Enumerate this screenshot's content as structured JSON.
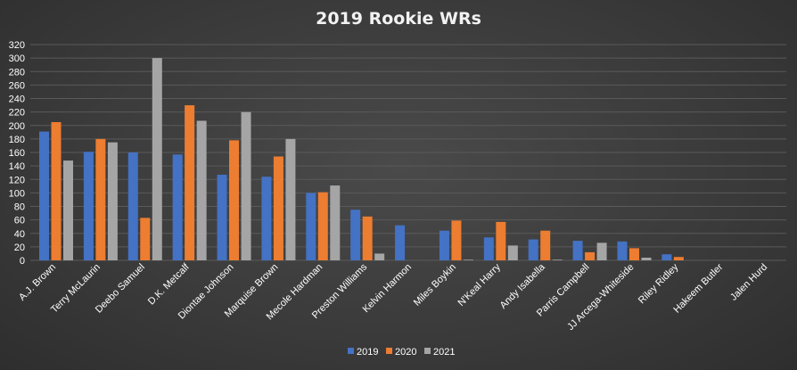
{
  "chart_data": {
    "type": "bar",
    "title": "2019 Rookie WRs",
    "xlabel": "",
    "ylabel": "",
    "ylim": [
      0,
      320
    ],
    "yticks": [
      0,
      20,
      40,
      60,
      80,
      100,
      120,
      140,
      160,
      180,
      200,
      220,
      240,
      260,
      280,
      300,
      320
    ],
    "grid": true,
    "legend_position": "bottom",
    "categories": [
      "A.J. Brown",
      "Terry McLaurin",
      "Deebo Samuel",
      "D.K. Metcalf",
      "Diontae Johnson",
      "Marquise Brown",
      "Mecole Hardman",
      "Preston Williams",
      "Kelvin Harmon",
      "Miles Boykin",
      "N'Keal Harry",
      "Andy Isabella",
      "Parris Campbell",
      "JJ Arcega-Whiteside",
      "Riley Ridley",
      "Hakeem Butler",
      "Jalen Hurd"
    ],
    "series": [
      {
        "name": "2019",
        "color": "#4472C4",
        "values": [
          191,
          161,
          160,
          157,
          127,
          124,
          100,
          75,
          52,
          44,
          34,
          31,
          29,
          28,
          9,
          0,
          0
        ]
      },
      {
        "name": "2020",
        "color": "#ED7D31",
        "values": [
          205,
          180,
          63,
          230,
          178,
          154,
          101,
          65,
          0,
          59,
          57,
          44,
          12,
          18,
          5,
          0,
          0
        ]
      },
      {
        "name": "2021",
        "color": "#A5A5A5",
        "values": [
          148,
          175,
          300,
          207,
          220,
          180,
          111,
          10,
          0,
          1,
          22,
          1,
          26,
          4,
          0,
          0,
          0
        ]
      }
    ]
  }
}
